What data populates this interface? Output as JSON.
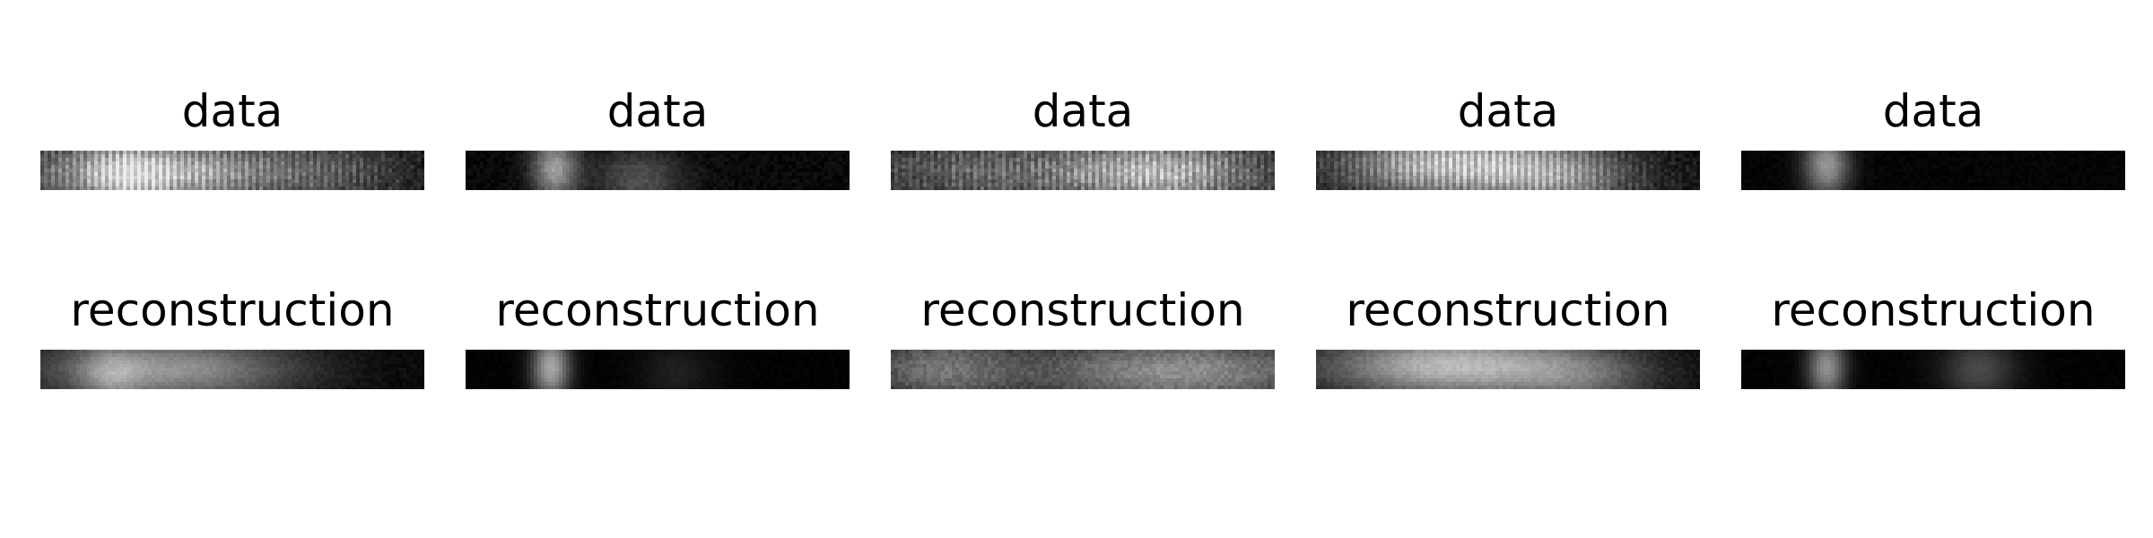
{
  "chart_data": [
    {
      "type": "heatmap",
      "rows": [
        {
          "title": "data",
          "panels": [
            {
              "blobs": [
                [
                  0.3,
                  0.55,
                  0.82,
                  0.36
                ],
                [
                  0.22,
                  0.7,
                  0.3,
                  0.1
                ],
                [
                  0.78,
                  0.55,
                  0.22,
                  0.2
                ]
              ],
              "noise": 0.18,
              "stripes": true
            },
            {
              "blobs": [
                [
                  0.23,
                  0.45,
                  0.62,
                  0.06
                ],
                [
                  0.45,
                  0.75,
                  0.3,
                  0.12
                ]
              ],
              "noise": 0.08,
              "stripes": false
            },
            {
              "blobs": [
                [
                  0.7,
                  0.55,
                  0.78,
                  0.28
                ],
                [
                  0.2,
                  0.5,
                  0.35,
                  0.3
                ]
              ],
              "noise": 0.22,
              "stripes": true
            },
            {
              "blobs": [
                [
                  0.35,
                  0.35,
                  0.85,
                  0.3
                ],
                [
                  0.65,
                  0.7,
                  0.45,
                  0.2
                ]
              ],
              "noise": 0.15,
              "stripes": true
            },
            {
              "blobs": [
                [
                  0.22,
                  0.35,
                  0.62,
                  0.06
                ]
              ],
              "noise": 0.04,
              "stripes": false
            }
          ]
        },
        {
          "title": "reconstruction",
          "panels": [
            {
              "blobs": [
                [
                  0.33,
                  0.5,
                  0.6,
                  0.34
                ],
                [
                  0.18,
                  0.7,
                  0.25,
                  0.08
                ]
              ],
              "noise": 0.1,
              "stripes": false
            },
            {
              "blobs": [
                [
                  0.22,
                  0.45,
                  0.7,
                  0.05
                ],
                [
                  0.55,
                  0.6,
                  0.12,
                  0.1
                ]
              ],
              "noise": 0.04,
              "stripes": false
            },
            {
              "blobs": [
                [
                  0.75,
                  0.55,
                  0.55,
                  0.4
                ],
                [
                  0.12,
                  0.5,
                  0.4,
                  0.2
                ]
              ],
              "noise": 0.2,
              "stripes": false
            },
            {
              "blobs": [
                [
                  0.35,
                  0.4,
                  0.75,
                  0.34
                ],
                [
                  0.7,
                  0.7,
                  0.3,
                  0.2
                ]
              ],
              "noise": 0.12,
              "stripes": false
            },
            {
              "blobs": [
                [
                  0.22,
                  0.45,
                  0.6,
                  0.05
                ],
                [
                  0.62,
                  0.5,
                  0.3,
                  0.1
                ]
              ],
              "noise": 0.04,
              "stripes": false
            }
          ]
        }
      ],
      "colormap": "gray",
      "axes": "off"
    }
  ]
}
